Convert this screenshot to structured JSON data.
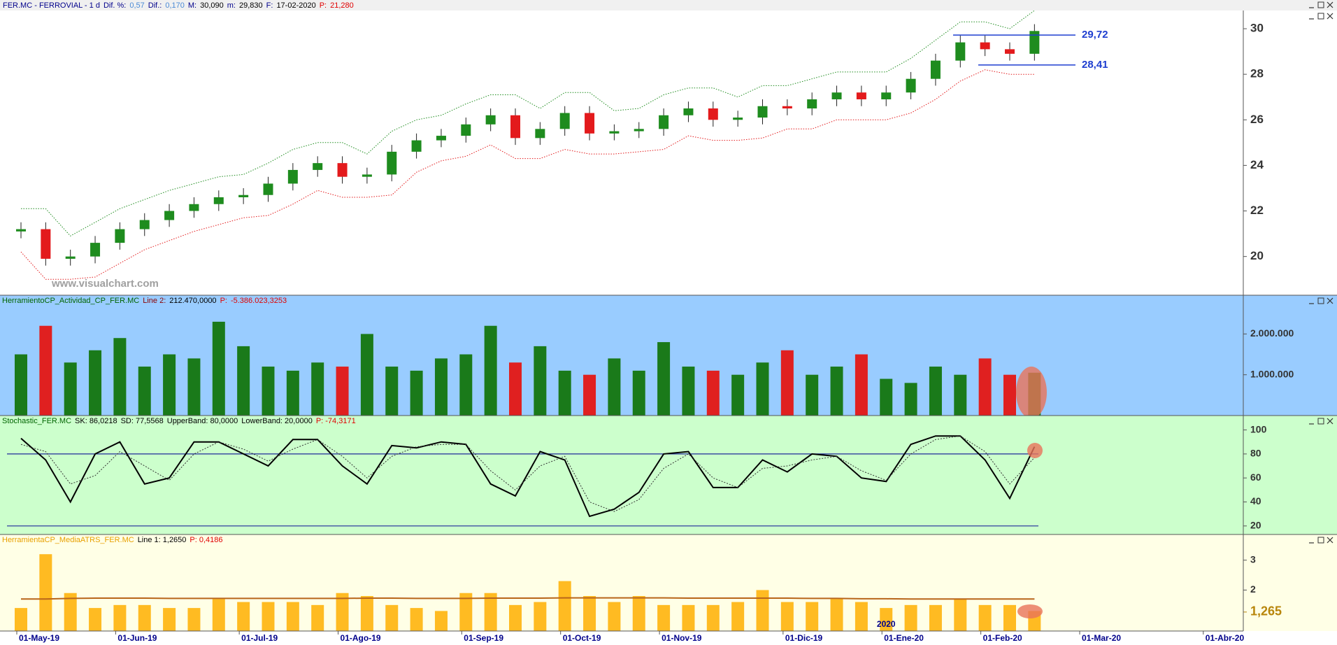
{
  "header": [
    {
      "text": "FER.MC - FERROVIAL -  1 d",
      "color": "#00008b"
    },
    {
      "text": "Dif. %:",
      "color": "#00008b"
    },
    {
      "text": "0,57",
      "color": "#4b8bd6"
    },
    {
      "text": "Dif.:",
      "color": "#00008b"
    },
    {
      "text": "0,170",
      "color": "#4b8bd6"
    },
    {
      "text": "M:",
      "color": "#00008b"
    },
    {
      "text": "30,090",
      "color": "#000000"
    },
    {
      "text": "m:",
      "color": "#00008b"
    },
    {
      "text": "29,830",
      "color": "#000000"
    },
    {
      "text": "F:",
      "color": "#00008b"
    },
    {
      "text": "17-02-2020",
      "color": "#000000"
    },
    {
      "text": "P:",
      "color": "#e00000"
    },
    {
      "text": "21,280",
      "color": "#e00000"
    }
  ],
  "chart_data": [
    {
      "type": "candlestick",
      "background": "#ffffff",
      "watermark": "www.visualchart.com",
      "open": [
        21.1,
        21.2,
        19.9,
        20.0,
        20.6,
        21.2,
        21.6,
        22.0,
        22.3,
        22.6,
        22.7,
        23.2,
        23.8,
        24.1,
        23.5,
        23.6,
        24.6,
        25.1,
        25.3,
        25.8,
        26.2,
        25.2,
        25.6,
        26.3,
        25.4,
        25.5,
        25.6,
        26.2,
        26.5,
        26.0,
        26.1,
        26.6,
        26.5,
        26.9,
        27.2,
        26.9,
        27.2,
        27.8,
        28.6,
        29.4,
        29.1,
        28.9,
        null,
        null,
        null,
        null,
        null,
        null,
        null,
        null,
        null,
        null
      ],
      "high": [
        21.5,
        21.5,
        20.3,
        20.9,
        21.5,
        21.9,
        22.3,
        22.6,
        22.9,
        23.0,
        23.5,
        24.1,
        24.4,
        24.4,
        23.9,
        24.9,
        25.4,
        25.6,
        26.1,
        26.5,
        26.5,
        25.9,
        26.6,
        26.6,
        25.8,
        25.9,
        26.5,
        26.8,
        26.8,
        26.4,
        26.9,
        26.9,
        27.2,
        27.5,
        27.5,
        27.5,
        28.1,
        28.9,
        29.7,
        29.7,
        29.4,
        30.2,
        null,
        null,
        null,
        null,
        null,
        null,
        null,
        null,
        null,
        null
      ],
      "low": [
        20.8,
        19.6,
        19.6,
        19.7,
        20.3,
        20.9,
        21.3,
        21.7,
        22.0,
        22.3,
        22.4,
        22.9,
        23.5,
        23.2,
        23.2,
        23.3,
        24.3,
        24.8,
        25.0,
        25.5,
        24.9,
        24.9,
        25.3,
        25.1,
        25.1,
        25.2,
        25.3,
        25.9,
        25.7,
        25.7,
        25.8,
        26.2,
        26.2,
        26.6,
        26.6,
        26.6,
        26.9,
        27.5,
        28.3,
        28.8,
        28.6,
        28.6,
        null,
        null,
        null,
        null,
        null,
        null,
        null,
        null,
        null,
        null
      ],
      "close": [
        21.2,
        19.9,
        20.0,
        20.6,
        21.2,
        21.6,
        22.0,
        22.3,
        22.6,
        22.7,
        23.2,
        23.8,
        24.1,
        23.5,
        23.6,
        24.6,
        25.1,
        25.3,
        25.8,
        26.2,
        25.2,
        25.6,
        26.3,
        25.4,
        25.5,
        25.6,
        26.2,
        26.5,
        26.0,
        26.1,
        26.6,
        26.5,
        26.9,
        27.2,
        26.9,
        27.2,
        27.8,
        28.6,
        29.4,
        29.1,
        28.9,
        29.9,
        null,
        null,
        null,
        null,
        null,
        null,
        null,
        null,
        null,
        null
      ],
      "up_color": "#1e8c1e",
      "down_color": "#e31a1c",
      "bands": [
        {
          "color": "#1e8c1e",
          "dash": true,
          "values": [
            22.1,
            22.1,
            20.9,
            21.5,
            22.1,
            22.5,
            22.9,
            23.2,
            23.5,
            23.6,
            24.1,
            24.7,
            25.0,
            25.0,
            24.5,
            25.5,
            26.0,
            26.2,
            26.7,
            27.1,
            27.1,
            26.5,
            27.2,
            27.2,
            26.4,
            26.5,
            27.1,
            27.4,
            27.4,
            27.0,
            27.5,
            27.5,
            27.8,
            28.1,
            28.1,
            28.1,
            28.7,
            29.5,
            30.3,
            30.3,
            30.0,
            30.8,
            null,
            null,
            null,
            null,
            null,
            null,
            null,
            null,
            null,
            null
          ]
        },
        {
          "color": "#e31a1c",
          "dash": true,
          "values": [
            20.2,
            19.0,
            19.0,
            19.1,
            19.7,
            20.3,
            20.7,
            21.1,
            21.4,
            21.7,
            21.8,
            22.3,
            22.9,
            22.6,
            22.6,
            22.7,
            23.7,
            24.2,
            24.4,
            24.9,
            24.3,
            24.3,
            24.7,
            24.5,
            24.5,
            24.6,
            24.7,
            25.3,
            25.1,
            25.1,
            25.2,
            25.6,
            25.6,
            26.0,
            26.0,
            26.0,
            26.3,
            26.9,
            27.7,
            28.2,
            28.0,
            28.0,
            null,
            null,
            null,
            null,
            null,
            null,
            null,
            null,
            null,
            null
          ]
        }
      ],
      "levels": [
        {
          "value": 29.72,
          "label": "29,72"
        },
        {
          "value": 28.41,
          "label": "28,41"
        }
      ],
      "level_color": "#1f3fd0",
      "ylim": [
        18.3,
        30.8
      ],
      "yticks": [
        20,
        22,
        24,
        26,
        28,
        30
      ]
    },
    {
      "type": "bar",
      "background": "#99ccff",
      "info": [
        {
          "text": "HerramientoCP_Actividad_CP_FER.MC",
          "color": "#006400"
        },
        {
          "text": "Line 2:",
          "color": "#8b0000"
        },
        {
          "text": "212.470,0000",
          "color": "#000000"
        },
        {
          "text": "P:",
          "color": "#e00000"
        },
        {
          "text": "-5.386.023,3253",
          "color": "#e00000"
        }
      ],
      "values": [
        1500000,
        2200000,
        1300000,
        1600000,
        1900000,
        1200000,
        1500000,
        1400000,
        2300000,
        1700000,
        1200000,
        1100000,
        1300000,
        1200000,
        2000000,
        1200000,
        1100000,
        1400000,
        1500000,
        2200000,
        1300000,
        1700000,
        1100000,
        1000000,
        1400000,
        1100000,
        1800000,
        1200000,
        1100000,
        1000000,
        1300000,
        1600000,
        1000000,
        1200000,
        1500000,
        900000,
        800000,
        1200000,
        1000000,
        1400000,
        1000000,
        1050000,
        null,
        null,
        null,
        null,
        null,
        null,
        null,
        null,
        null,
        null
      ],
      "up_color": "#1a7a1a",
      "down_color": "#e02020",
      "ylim": [
        0,
        2950000
      ],
      "yticks": [
        {
          "value": 1000000,
          "label": "1.000.000"
        },
        {
          "value": 2000000,
          "label": "2.000.000"
        }
      ]
    },
    {
      "type": "line",
      "background": "#ccffcc",
      "info": [
        {
          "text": "Stochastic_FER.MC",
          "color": "#006400"
        },
        {
          "text": "SK: 86,0218",
          "color": "#000000"
        },
        {
          "text": "SD: 77,5568",
          "color": "#000000"
        },
        {
          "text": "UpperBand: 80,0000",
          "color": "#000000"
        },
        {
          "text": "LowerBand: 20,0000",
          "color": "#000000"
        },
        {
          "text": "P: -74,3171",
          "color": "#e00000"
        }
      ],
      "series": [
        {
          "color": "#000000",
          "dash": false,
          "values": [
            93,
            75,
            40,
            80,
            90,
            55,
            60,
            90,
            90,
            80,
            70,
            92,
            92,
            70,
            55,
            87,
            85,
            90,
            88,
            55,
            45,
            82,
            75,
            28,
            34,
            48,
            80,
            82,
            52,
            52,
            75,
            65,
            80,
            78,
            60,
            57,
            88,
            95,
            95,
            75,
            43,
            86,
            null,
            null,
            null,
            null,
            null,
            null,
            null,
            null,
            null,
            null
          ]
        },
        {
          "color": "#333333",
          "dash": true,
          "values": [
            88,
            82,
            55,
            62,
            82,
            70,
            58,
            80,
            90,
            84,
            74,
            84,
            92,
            78,
            60,
            78,
            86,
            88,
            88,
            66,
            50,
            70,
            78,
            40,
            32,
            42,
            68,
            80,
            60,
            52,
            68,
            70,
            75,
            78,
            66,
            58,
            80,
            92,
            95,
            82,
            55,
            77,
            null,
            null,
            null,
            null,
            null,
            null,
            null,
            null,
            null,
            null
          ]
        }
      ],
      "levels": [
        80,
        20
      ],
      "level_color": "#1f2a9a",
      "ylim": [
        12.9,
        112
      ],
      "yticks": [
        20,
        40,
        60,
        80,
        100
      ]
    },
    {
      "type": "bar",
      "background": "#ffffe6",
      "color": "#ffbb22",
      "info": [
        {
          "text": "HerramientaCP_MediaATRS_FER.MC",
          "color": "#e8a000"
        },
        {
          "text": "Line 1: 1,2650",
          "color": "#000000"
        },
        {
          "text": "P: 0,4186",
          "color": "#e00000"
        }
      ],
      "values": [
        1.4,
        3.2,
        1.9,
        1.4,
        1.5,
        1.5,
        1.4,
        1.4,
        1.7,
        1.6,
        1.6,
        1.6,
        1.5,
        1.9,
        1.8,
        1.5,
        1.4,
        1.3,
        1.9,
        1.9,
        1.5,
        1.6,
        2.3,
        1.8,
        1.6,
        1.8,
        1.5,
        1.5,
        1.5,
        1.6,
        2.0,
        1.6,
        1.6,
        1.7,
        1.6,
        1.4,
        1.5,
        1.5,
        1.7,
        1.5,
        1.5,
        1.3,
        null,
        null,
        null,
        null,
        null,
        null,
        null,
        null,
        null,
        null
      ],
      "series": [
        {
          "color": "#b8651a",
          "dash": false,
          "values": [
            1.7,
            1.7,
            1.72,
            1.73,
            1.73,
            1.73,
            1.72,
            1.72,
            1.72,
            1.72,
            1.72,
            1.72,
            1.72,
            1.72,
            1.73,
            1.73,
            1.72,
            1.72,
            1.72,
            1.73,
            1.73,
            1.73,
            1.74,
            1.74,
            1.74,
            1.74,
            1.74,
            1.73,
            1.73,
            1.73,
            1.73,
            1.73,
            1.72,
            1.72,
            1.71,
            1.71,
            1.7,
            1.7,
            1.7,
            1.7,
            1.7,
            1.7,
            null,
            null,
            null,
            null,
            null,
            null,
            null,
            null,
            null,
            null
          ]
        }
      ],
      "current": {
        "value": 1.265,
        "label": "1,265"
      },
      "year_label": "2020",
      "categories": [
        "01-May-19",
        null,
        null,
        null,
        "01-Jun-19",
        null,
        null,
        null,
        null,
        "01-Jul-19",
        null,
        null,
        null,
        "01-Ago-19",
        null,
        null,
        null,
        null,
        "01-Sep-19",
        null,
        null,
        null,
        "01-Oct-19",
        null,
        null,
        null,
        "01-Nov-19",
        null,
        null,
        null,
        null,
        "01-Dic-19",
        null,
        null,
        null,
        "01-Ene-20",
        null,
        null,
        null,
        "01-Feb-20",
        null,
        null,
        null,
        "01-Mar-20",
        null,
        null,
        null,
        null,
        "01-Abr-20",
        null,
        null,
        null
      ],
      "ylim": [
        0.63,
        3.86
      ],
      "yticks": [
        2,
        3
      ]
    }
  ]
}
